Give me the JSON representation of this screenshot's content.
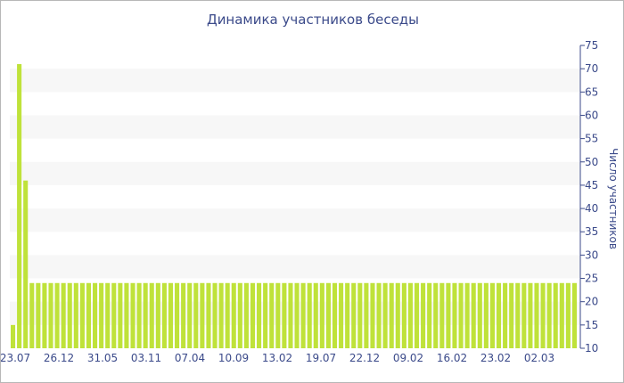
{
  "chart_data": {
    "type": "bar",
    "title": "Динамика участников беседы",
    "xlabel": "",
    "ylabel": "Число участников",
    "ylim": [
      10,
      75
    ],
    "y_ticks": [
      10,
      15,
      20,
      25,
      30,
      35,
      40,
      45,
      50,
      55,
      60,
      65,
      70,
      75
    ],
    "y_axis_position": "right",
    "x_tick_labels": [
      "23.07",
      "26.12",
      "31.05",
      "03.11",
      "07.04",
      "10.09",
      "13.02",
      "19.07",
      "22.12",
      "09.02",
      "16.02",
      "23.02",
      "02.03"
    ],
    "grid": true,
    "bar_color": "#bfe23a",
    "band_color": "#f7f7f7",
    "axis_color": "#3b4a8a",
    "series": [
      {
        "values": [
          15,
          71,
          46,
          24,
          24,
          24,
          24,
          24,
          24,
          24,
          24,
          24,
          24,
          24,
          24,
          24,
          24,
          24,
          24,
          24,
          24,
          24,
          24,
          24,
          24,
          24,
          24,
          24,
          24,
          24,
          24,
          24,
          24,
          24,
          24,
          24,
          24,
          24,
          24,
          24,
          24,
          24,
          24,
          24,
          24,
          24,
          24,
          24,
          24,
          24,
          24,
          24,
          24,
          24,
          24,
          24,
          24,
          24,
          24,
          24,
          24,
          24,
          24,
          24,
          24,
          24,
          24,
          24,
          24,
          24,
          24,
          24,
          24,
          24,
          24,
          24,
          24,
          24,
          24,
          24,
          24,
          24,
          24,
          24,
          24,
          24,
          24,
          24,
          24,
          24
        ]
      }
    ]
  }
}
